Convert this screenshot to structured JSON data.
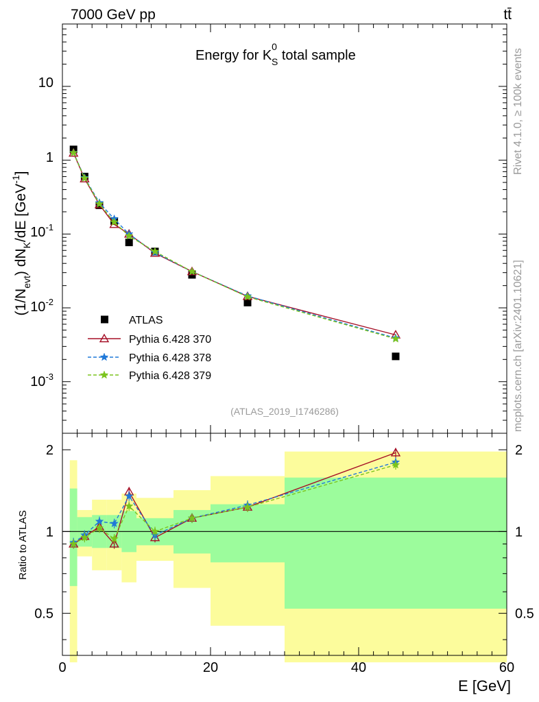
{
  "header": {
    "energy_label": "7000 GeV pp",
    "process_label": "tt̄",
    "title_prefix": "Energy for K",
    "title_sup": "0",
    "title_sub": "S",
    "title_suffix": " total sample",
    "analysis_id": "(ATLAS_2019_I1746286)"
  },
  "side_text": {
    "rivet": "Rivet 4.1.0, ≥ 100k events",
    "mcplots": "mcplots.cern.ch [arXiv:2401.10621]"
  },
  "axes": {
    "xlabel": "E [GeV]",
    "ylabel_main": "(1/N_evt) dN_K/dE [GeV^-1]",
    "ylabel_ratio": "Ratio to ATLAS",
    "x_ticks": [
      "0",
      "20",
      "40",
      "60"
    ],
    "y_ticks_main": [
      "10^-3",
      "10^-2",
      "10^-1",
      "1",
      "10"
    ],
    "y_ticks_ratio": [
      "0.5",
      "1",
      "2"
    ]
  },
  "legend": {
    "items": [
      {
        "label": "ATLAS"
      },
      {
        "label": "Pythia 6.428 370"
      },
      {
        "label": "Pythia 6.428 378"
      },
      {
        "label": "Pythia 6.428 379"
      }
    ]
  },
  "colors": {
    "data": "#000000",
    "p370": "#a50f26",
    "p378": "#1f78d8",
    "p379": "#7bc41d",
    "band_inner": "#9cfc9c",
    "band_outer": "#fcfc9c"
  },
  "chart_data": [
    {
      "type": "scatter",
      "panel": "main",
      "title": "Energy for K0S total sample",
      "xlabel": "E [GeV]",
      "ylabel": "(1/Nevt) dNK/dE [GeV^-1]",
      "xlim": [
        0,
        60
      ],
      "ylim": [
        0.0002,
        70
      ],
      "yscale": "log",
      "bin_edges": [
        1,
        2,
        4,
        6,
        8,
        10,
        15,
        20,
        30,
        60
      ],
      "x": [
        1.5,
        3,
        5,
        7,
        9,
        12.5,
        17.5,
        25,
        45
      ],
      "series": [
        {
          "name": "ATLAS",
          "values": [
            1.4,
            0.6,
            0.245,
            0.15,
            0.077,
            0.058,
            0.028,
            0.0118,
            0.0022
          ]
        },
        {
          "name": "Pythia 6.428 370",
          "values": [
            1.25,
            0.56,
            0.25,
            0.135,
            0.1,
            0.055,
            0.031,
            0.0143,
            0.0043
          ]
        },
        {
          "name": "Pythia 6.428 378",
          "values": [
            1.27,
            0.58,
            0.265,
            0.16,
            0.1,
            0.056,
            0.031,
            0.0145,
            0.0039
          ]
        },
        {
          "name": "Pythia 6.428 379",
          "values": [
            1.26,
            0.57,
            0.255,
            0.145,
            0.094,
            0.058,
            0.031,
            0.0141,
            0.0038
          ]
        }
      ]
    },
    {
      "type": "line",
      "panel": "ratio",
      "ylabel": "Ratio to ATLAS",
      "xlim": [
        0,
        60
      ],
      "ylim": [
        0.35,
        2.3
      ],
      "yscale": "log",
      "reference": 1,
      "x": [
        1.5,
        3,
        5,
        7,
        9,
        12.5,
        17.5,
        25,
        45
      ],
      "bands": {
        "edges": [
          1,
          2,
          4,
          6,
          8,
          10,
          15,
          20,
          30,
          60
        ],
        "inner": [
          [
            0.63,
            1.44
          ],
          [
            0.88,
            1.13
          ],
          [
            0.87,
            1.15
          ],
          [
            0.87,
            1.15
          ],
          [
            0.84,
            1.19
          ],
          [
            0.89,
            1.12
          ],
          [
            0.83,
            1.2
          ],
          [
            0.77,
            1.26
          ],
          [
            0.52,
            1.58
          ]
        ],
        "outer": [
          [
            0.33,
            1.83
          ],
          [
            0.81,
            1.2
          ],
          [
            0.72,
            1.31
          ],
          [
            0.72,
            1.31
          ],
          [
            0.65,
            1.38
          ],
          [
            0.78,
            1.33
          ],
          [
            0.62,
            1.42
          ],
          [
            0.45,
            1.6
          ],
          [
            0.33,
            1.97
          ]
        ]
      },
      "series": [
        {
          "name": "Pythia 6.428 370",
          "values": [
            0.9,
            0.96,
            1.04,
            0.9,
            1.4,
            0.95,
            1.12,
            1.23,
            1.95
          ]
        },
        {
          "name": "Pythia 6.428 378",
          "values": [
            0.91,
            0.97,
            1.09,
            1.07,
            1.35,
            0.97,
            1.12,
            1.25,
            1.8
          ]
        },
        {
          "name": "Pythia 6.428 379",
          "values": [
            0.9,
            0.95,
            1.03,
            0.94,
            1.24,
            1.0,
            1.12,
            1.23,
            1.76
          ]
        }
      ]
    }
  ]
}
